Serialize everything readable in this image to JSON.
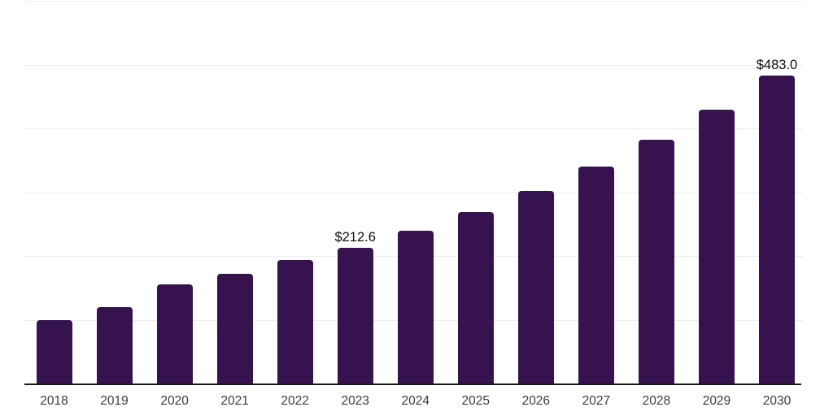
{
  "chart_data": {
    "type": "bar",
    "title": "",
    "xlabel": "",
    "ylabel": "",
    "categories": [
      "2018",
      "2019",
      "2020",
      "2021",
      "2022",
      "2023",
      "2024",
      "2025",
      "2026",
      "2027",
      "2028",
      "2029",
      "2030"
    ],
    "values": [
      100.0,
      120.3,
      155.0,
      172.3,
      193.0,
      212.6,
      239.1,
      268.8,
      302.2,
      339.8,
      382.1,
      429.6,
      483.0
    ],
    "data_labels": {
      "2023": "$212.6",
      "2030": "$483.0"
    },
    "ylim": [
      0,
      600
    ],
    "gridline_step": 100,
    "grid": "horizontal-only",
    "legend": "none",
    "y_axis_labels_visible": false,
    "colors": {
      "bar": "#36124F",
      "gridline": "#EDEDED",
      "axis_line": "#1A1A1A",
      "tick_label": "#3C3C3C",
      "data_label": "#0F0F0F",
      "background": "#FFFFFF"
    }
  }
}
